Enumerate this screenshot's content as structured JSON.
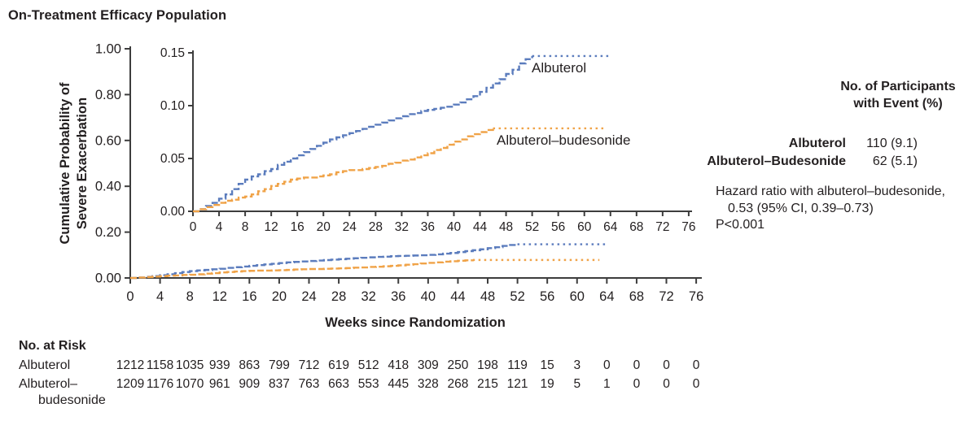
{
  "chart_data": {
    "type": "line",
    "title": "On-Treatment Efficacy Population",
    "xlabel": "Weeks since Randomization",
    "ylabel_line1": "Cumulative Probability of",
    "ylabel_line2": "Severe Exacerbation",
    "main_axis": {
      "xlim": [
        0,
        76
      ],
      "ylim": [
        0,
        1.0
      ],
      "xticks": [
        0,
        4,
        8,
        12,
        16,
        20,
        24,
        28,
        32,
        36,
        40,
        44,
        48,
        52,
        56,
        60,
        64,
        68,
        72,
        76
      ],
      "ytick_values": [
        0,
        0.2,
        0.4,
        0.6,
        0.8,
        1.0
      ],
      "ytick_labels": [
        "0.00",
        "0.20",
        "0.40",
        "0.60",
        "0.80",
        "1.00"
      ],
      "grid": false
    },
    "inset_axis": {
      "xlim": [
        0,
        76
      ],
      "ylim": [
        0,
        0.15
      ],
      "xticks": [
        0,
        4,
        8,
        12,
        16,
        20,
        24,
        28,
        32,
        36,
        40,
        44,
        48,
        52,
        56,
        60,
        64,
        68,
        72,
        76
      ],
      "ytick_values": [
        0,
        0.05,
        0.1,
        0.15
      ],
      "ytick_labels": [
        "0.00",
        "0.05",
        "0.10",
        "0.15"
      ],
      "grid": false
    },
    "series": [
      {
        "name": "Albuterol",
        "color": "#5b7cbd",
        "x": [
          0,
          1,
          2,
          3,
          4,
          5,
          6,
          7,
          8,
          9,
          10,
          11,
          12,
          13,
          14,
          15,
          16,
          17,
          18,
          19,
          20,
          21,
          22,
          23,
          24,
          25,
          26,
          27,
          28,
          29,
          30,
          31,
          32,
          33,
          34,
          35,
          36,
          37,
          38,
          39,
          40,
          41,
          42,
          43,
          44,
          45,
          46,
          47,
          48,
          49,
          50,
          51,
          52,
          64
        ],
        "y": [
          0,
          0.002,
          0.005,
          0.008,
          0.012,
          0.016,
          0.021,
          0.026,
          0.03,
          0.033,
          0.035,
          0.038,
          0.04,
          0.044,
          0.047,
          0.05,
          0.053,
          0.056,
          0.059,
          0.062,
          0.065,
          0.068,
          0.07,
          0.072,
          0.074,
          0.076,
          0.078,
          0.08,
          0.082,
          0.084,
          0.086,
          0.088,
          0.09,
          0.092,
          0.093,
          0.095,
          0.096,
          0.097,
          0.098,
          0.099,
          0.101,
          0.103,
          0.106,
          0.109,
          0.113,
          0.117,
          0.121,
          0.125,
          0.13,
          0.134,
          0.14,
          0.144,
          0.147,
          0.147
        ]
      },
      {
        "name": "Albuterol–budesonide",
        "color": "#f0a348",
        "x": [
          0,
          1,
          2,
          3,
          4,
          5,
          6,
          7,
          8,
          9,
          10,
          11,
          12,
          13,
          14,
          15,
          16,
          17,
          18,
          19,
          20,
          21,
          22,
          23,
          24,
          25,
          26,
          27,
          28,
          29,
          30,
          31,
          32,
          33,
          34,
          35,
          36,
          37,
          38,
          39,
          40,
          41,
          42,
          43,
          44,
          45,
          46,
          63
        ],
        "y": [
          0,
          0.002,
          0.004,
          0.006,
          0.008,
          0.01,
          0.011,
          0.013,
          0.014,
          0.016,
          0.019,
          0.021,
          0.024,
          0.026,
          0.028,
          0.03,
          0.031,
          0.032,
          0.032,
          0.033,
          0.034,
          0.035,
          0.037,
          0.038,
          0.039,
          0.039,
          0.04,
          0.041,
          0.042,
          0.043,
          0.045,
          0.046,
          0.048,
          0.049,
          0.051,
          0.053,
          0.055,
          0.058,
          0.06,
          0.063,
          0.066,
          0.068,
          0.071,
          0.073,
          0.075,
          0.077,
          0.0785,
          0.0785
        ]
      }
    ],
    "legend_position": "inline-labels"
  },
  "stats_panel": {
    "header_line1": "No. of Participants",
    "header_line2": "with Event (%)",
    "rows": [
      {
        "label": "Albuterol",
        "value": "110 (9.1)"
      },
      {
        "label": "Albuterol–Budesonide",
        "value": "62 (5.1)"
      }
    ],
    "hazard_line1": "Hazard ratio with albuterol–budesonide,",
    "hazard_line2": "0.53 (95% CI, 0.39–0.73)",
    "hazard_line3": "P<0.001"
  },
  "risk_table": {
    "title": "No. at Risk",
    "weeks": [
      0,
      4,
      8,
      12,
      16,
      20,
      24,
      28,
      32,
      36,
      40,
      44,
      48,
      52,
      56,
      60,
      64,
      68,
      72,
      76
    ],
    "rows": [
      {
        "label_lines": [
          "Albuterol"
        ],
        "values": [
          1212,
          1158,
          1035,
          939,
          863,
          799,
          712,
          619,
          512,
          418,
          309,
          250,
          198,
          119,
          15,
          3,
          0,
          0,
          0,
          0
        ]
      },
      {
        "label_lines": [
          "Albuterol–",
          "budesonide"
        ],
        "values": [
          1209,
          1176,
          1070,
          961,
          909,
          837,
          763,
          663,
          553,
          445,
          328,
          268,
          215,
          121,
          19,
          5,
          1,
          0,
          0,
          0
        ]
      }
    ]
  }
}
